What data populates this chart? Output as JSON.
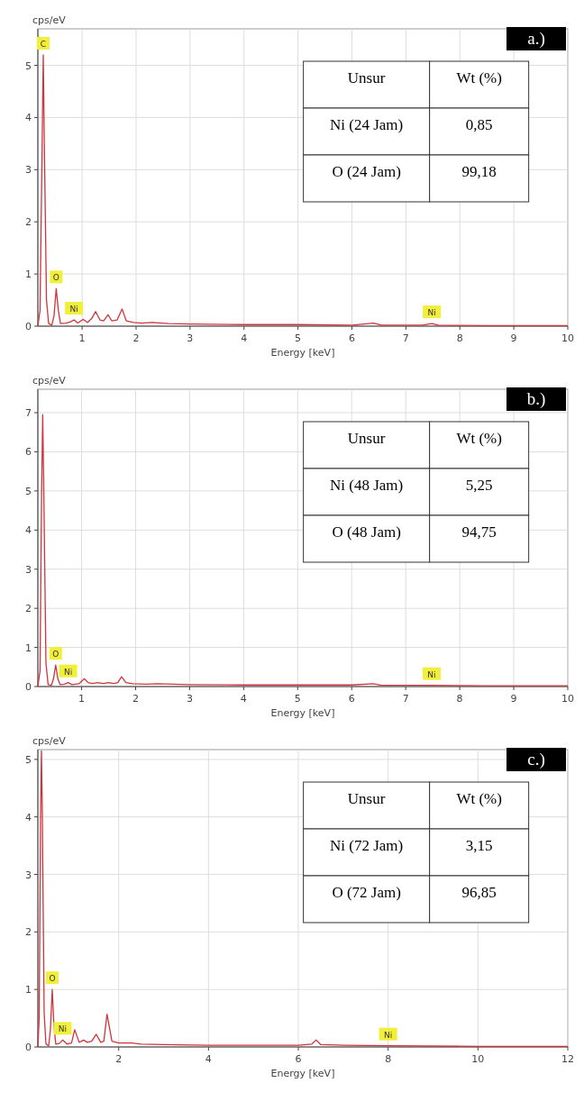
{
  "chart_data": [
    {
      "type": "line",
      "title": "a.)",
      "xlabel": "Energy [keV]",
      "ylabel": "cps/eV",
      "xlim": [
        0.18,
        10
      ],
      "ylim": [
        0,
        5.7
      ],
      "xticks": [
        1,
        2,
        3,
        4,
        5,
        6,
        7,
        8,
        9,
        10
      ],
      "yticks": [
        0,
        1,
        2,
        3,
        4,
        5
      ],
      "grid": true,
      "marker": "none",
      "line_style": "solid",
      "series": [
        {
          "color": "#d0343c",
          "x": [
            0.18,
            0.22,
            0.26,
            0.28,
            0.3,
            0.34,
            0.38,
            0.44,
            0.48,
            0.52,
            0.56,
            0.6,
            0.7,
            0.78,
            0.85,
            0.92,
            1.02,
            1.1,
            1.18,
            1.25,
            1.33,
            1.4,
            1.48,
            1.55,
            1.65,
            1.74,
            1.82,
            1.95,
            2.1,
            2.3,
            2.6,
            3,
            4,
            5,
            6,
            6.4,
            6.55,
            7.3,
            7.48,
            7.6,
            8.5,
            10
          ],
          "values": [
            0,
            0.3,
            3.5,
            5.2,
            3.5,
            0.5,
            0.05,
            0.02,
            0.2,
            0.72,
            0.3,
            0.05,
            0.06,
            0.08,
            0.12,
            0.06,
            0.13,
            0.07,
            0.15,
            0.28,
            0.12,
            0.1,
            0.22,
            0.1,
            0.12,
            0.33,
            0.1,
            0.07,
            0.06,
            0.07,
            0.05,
            0.04,
            0.03,
            0.03,
            0.02,
            0.06,
            0.02,
            0.02,
            0.05,
            0.02,
            0.01,
            0.01
          ]
        }
      ],
      "annotations": [
        {
          "text": "C",
          "x": 0.28,
          "y": 5.2
        },
        {
          "text": "O",
          "x": 0.52,
          "y": 0.72
        },
        {
          "text": "Ni",
          "x": 0.85,
          "y": 0.12
        },
        {
          "text": "Ni",
          "x": 7.48,
          "y": 0.05
        },
        "Unsur",
        "Wt (%)",
        "Ni (24 Jam)",
        "0,85",
        "O (24 Jam)",
        "99,18"
      ]
    },
    {
      "type": "line",
      "title": "b.)",
      "xlabel": "Energy [keV]",
      "ylabel": "cps/eV",
      "xlim": [
        0.19,
        10
      ],
      "ylim": [
        0,
        7.6
      ],
      "xticks": [
        1,
        2,
        3,
        4,
        5,
        6,
        7,
        8,
        9,
        10
      ],
      "yticks": [
        0,
        1,
        2,
        3,
        4,
        5,
        6,
        7
      ],
      "grid": true,
      "marker": "none",
      "line_style": "solid",
      "series": [
        {
          "color": "#d0343c",
          "x": [
            0.19,
            0.23,
            0.26,
            0.28,
            0.3,
            0.34,
            0.38,
            0.44,
            0.48,
            0.52,
            0.56,
            0.6,
            0.68,
            0.75,
            0.82,
            0.95,
            1.05,
            1.12,
            1.2,
            1.3,
            1.4,
            1.5,
            1.6,
            1.67,
            1.74,
            1.82,
            1.95,
            2.2,
            2.4,
            3,
            4,
            5,
            6,
            6.4,
            6.55,
            7.48,
            8.5,
            10
          ],
          "values": [
            0,
            0.4,
            5,
            6.95,
            5,
            0.6,
            0.05,
            0.03,
            0.2,
            0.55,
            0.2,
            0.05,
            0.06,
            0.1,
            0.05,
            0.07,
            0.2,
            0.1,
            0.08,
            0.1,
            0.08,
            0.1,
            0.08,
            0.1,
            0.25,
            0.1,
            0.07,
            0.06,
            0.07,
            0.05,
            0.04,
            0.04,
            0.04,
            0.07,
            0.03,
            0.03,
            0.02,
            0.02
          ]
        }
      ],
      "annotations": [
        {
          "text": "O",
          "x": 0.52,
          "y": 0.55
        },
        {
          "text": "Ni",
          "x": 0.75,
          "y": 0.1
        },
        {
          "text": "Ni",
          "x": 7.48,
          "y": 0.03
        },
        "Unsur",
        "Wt (%)",
        "Ni (48 Jam)",
        "5,25",
        "O (48 Jam)",
        "94,75"
      ]
    },
    {
      "type": "line",
      "title": "c.)",
      "xlabel": "Energy [keV]",
      "ylabel": "cps/eV",
      "xlim": [
        0.2,
        12
      ],
      "ylim": [
        0,
        5.17
      ],
      "xticks": [
        2,
        4,
        6,
        8,
        10,
        12
      ],
      "yticks": [
        0,
        1,
        2,
        3,
        4,
        5
      ],
      "grid": true,
      "marker": "none",
      "line_style": "solid",
      "series": [
        {
          "color": "#d0343c",
          "x": [
            0.2,
            0.23,
            0.26,
            0.28,
            0.3,
            0.34,
            0.38,
            0.44,
            0.48,
            0.52,
            0.56,
            0.6,
            0.68,
            0.75,
            0.85,
            0.95,
            1.02,
            1.12,
            1.22,
            1.3,
            1.4,
            1.5,
            1.6,
            1.67,
            1.74,
            1.85,
            2,
            2.3,
            2.5,
            3,
            4,
            5,
            6,
            6.3,
            6.4,
            6.5,
            7.05,
            8,
            10,
            12
          ],
          "values": [
            0,
            0.5,
            4,
            5.15,
            4,
            0.6,
            0.05,
            0.02,
            0.3,
            1.0,
            0.35,
            0.05,
            0.06,
            0.12,
            0.05,
            0.07,
            0.3,
            0.08,
            0.12,
            0.08,
            0.1,
            0.22,
            0.08,
            0.1,
            0.57,
            0.1,
            0.07,
            0.07,
            0.05,
            0.04,
            0.03,
            0.03,
            0.03,
            0.05,
            0.12,
            0.04,
            0.03,
            0.02,
            0.01,
            0.01
          ]
        }
      ],
      "annotations": [
        {
          "text": "O",
          "x": 0.52,
          "y": 1.0
        },
        {
          "text": "Ni",
          "x": 0.75,
          "y": 0.12
        },
        {
          "text": "Ni",
          "x": 8,
          "y": 0.02
        },
        "Unsur",
        "Wt (%)",
        "Ni (72 Jam)",
        "3,15",
        "O (72 Jam)",
        "96,85"
      ]
    }
  ]
}
